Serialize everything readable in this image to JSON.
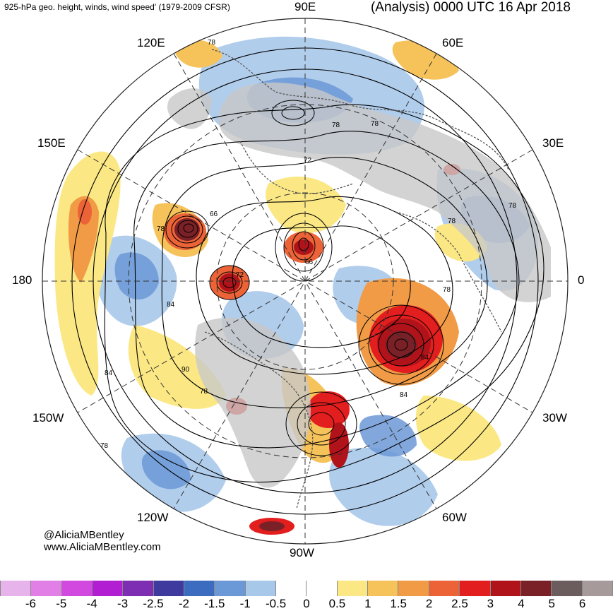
{
  "header": {
    "left_title": "925-hPa geo. height, winds, wind speed' (1979-2009 CFSR)",
    "right_title": "(Analysis) 0000 UTC 16 Apr 2018"
  },
  "longitude_labels": {
    "e90": "90E",
    "e60": "60E",
    "e120": "120E",
    "e150": "150E",
    "e30": "30E",
    "l180": "180",
    "l0": "0",
    "w150": "150W",
    "w30": "30W",
    "w120": "120W",
    "w60": "60W",
    "w90": "90W"
  },
  "contour_labels": [
    "78",
    "78",
    "78",
    "66",
    "72",
    "78",
    "66",
    "72",
    "78",
    "78",
    "84",
    "90",
    "78",
    "84",
    "84",
    "78",
    "84",
    "78"
  ],
  "credit": {
    "handle": "@AliciaMBentley",
    "site": "www.AliciaMBentley.com"
  },
  "colorbar": {
    "colors": [
      "#e6b3ea",
      "#e17fe6",
      "#d249e0",
      "#b21ed1",
      "#7d2eb3",
      "#3e3a9e",
      "#3b6cc0",
      "#6b98d6",
      "#a8c8ea",
      "#ffffff",
      "#ffffff",
      "#fbe884",
      "#f6c25a",
      "#f19b46",
      "#ec6337",
      "#e31e1e",
      "#b1131a",
      "#7a2127",
      "#6b5d5e",
      "#a69a9a"
    ],
    "ticks": [
      "-6",
      "-5",
      "-4",
      "-3",
      "-2.5",
      "-2",
      "-1.5",
      "-1",
      "-0.5",
      "0",
      "0.5",
      "1",
      "1.5",
      "2",
      "2.5",
      "3",
      "4",
      "5",
      "6"
    ]
  }
}
